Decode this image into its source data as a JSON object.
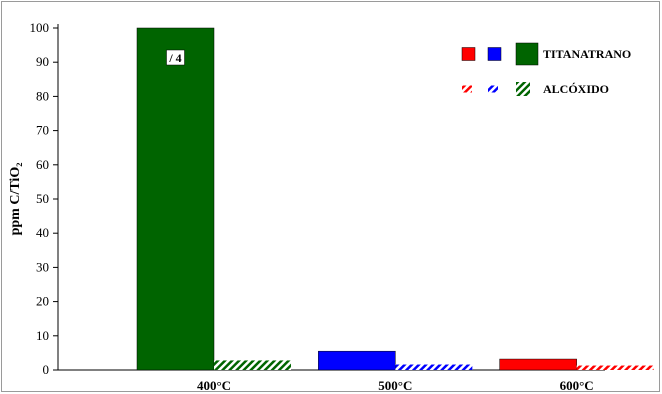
{
  "chart_data": {
    "type": "bar",
    "title": "",
    "xlabel": "",
    "ylabel": "ppm C/TiO₂",
    "ylim": [
      0,
      100
    ],
    "yticks": [
      0,
      10,
      20,
      30,
      40,
      50,
      60,
      70,
      80,
      90,
      100
    ],
    "categories": [
      "400°C",
      "500°C",
      "600°C"
    ],
    "series": [
      {
        "name": "TITANATRANO",
        "pattern": "solid",
        "colors": [
          "#006400",
          "#0000ff",
          "#ff0000"
        ],
        "values": [
          101,
          5.5,
          3.2
        ]
      },
      {
        "name": "ALCÓXIDO",
        "pattern": "hatched",
        "colors": [
          "#006400",
          "#0000ff",
          "#ff0000"
        ],
        "values": [
          2.8,
          1.6,
          1.3
        ]
      }
    ],
    "annotations": [
      {
        "category": "400°C",
        "series": "TITANATRANO",
        "text": "/ 4"
      }
    ],
    "legend": {
      "position": "top-right"
    },
    "grid": false
  }
}
